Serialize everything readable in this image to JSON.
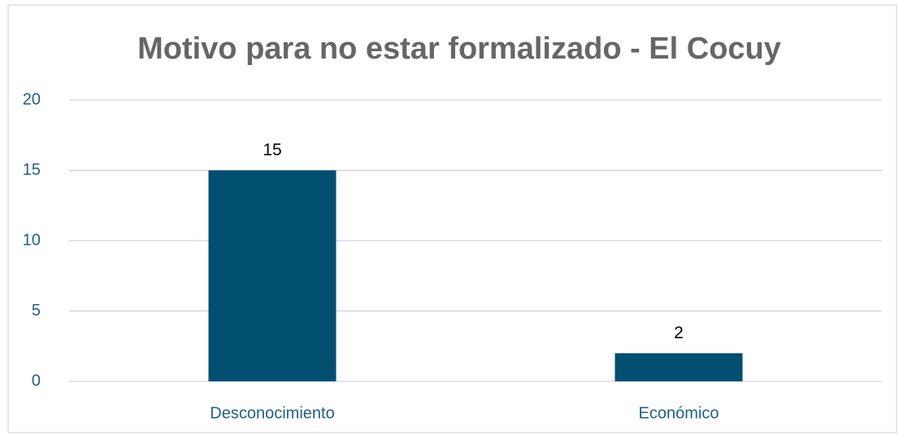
{
  "chart_data": {
    "type": "bar",
    "title": "Motivo para no estar formalizado - El Cocuy",
    "categories": [
      "Desconocimiento",
      "Económico"
    ],
    "values": [
      15,
      2
    ],
    "color": "#004f71",
    "ylim": [
      0,
      20
    ],
    "yticks": [
      0,
      5,
      10,
      15,
      20
    ],
    "grid": true
  }
}
